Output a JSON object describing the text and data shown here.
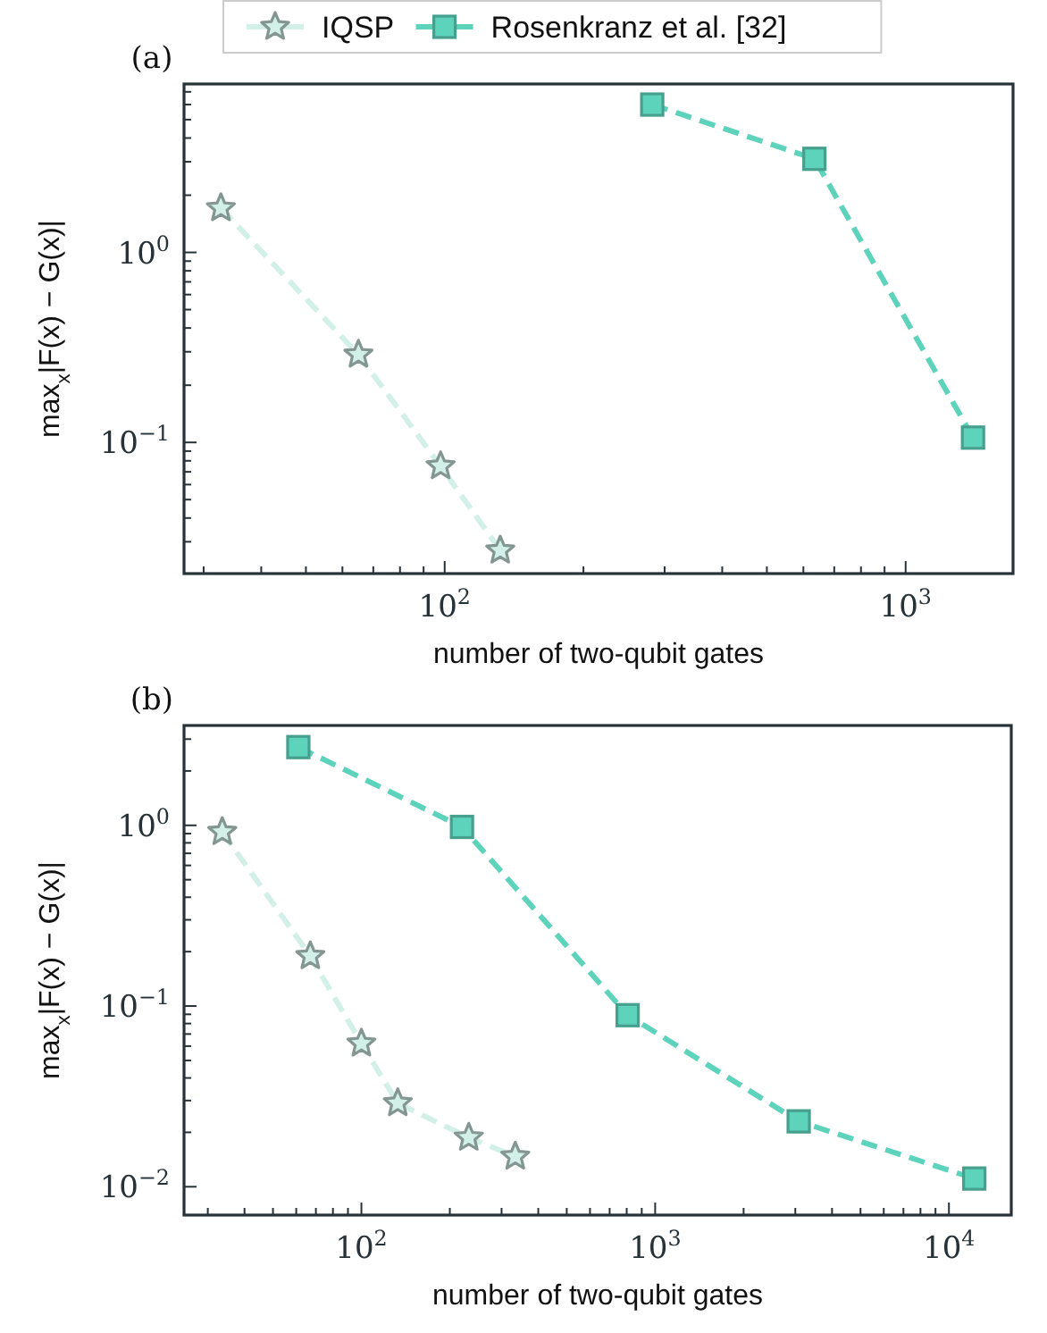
{
  "chart_data": [
    {
      "type": "line",
      "title": "(a)",
      "xlabel": "number of two-qubit gates",
      "ylabel": "max$_{x}$|F(x) − G(x)|",
      "log": "xy",
      "legend": "top",
      "line_style": "dashed",
      "grid": false,
      "xlim": [
        27.2,
        1710
      ],
      "ylim": [
        0.0204,
        7.7
      ],
      "xticks": [
        {
          "value": 30,
          "label": null
        },
        {
          "value": 40,
          "label": null
        },
        {
          "value": 50,
          "label": null
        },
        {
          "value": 60,
          "label": null
        },
        {
          "value": 70,
          "label": null
        },
        {
          "value": 80,
          "label": null
        },
        {
          "value": 90,
          "label": null
        },
        {
          "value": 100,
          "label": "10$^{2}$"
        },
        {
          "value": 200,
          "label": null
        },
        {
          "value": 300,
          "label": null
        },
        {
          "value": 400,
          "label": null
        },
        {
          "value": 500,
          "label": null
        },
        {
          "value": 600,
          "label": null
        },
        {
          "value": 700,
          "label": null
        },
        {
          "value": 800,
          "label": null
        },
        {
          "value": 900,
          "label": null
        },
        {
          "value": 1000,
          "label": "10$^{3}$"
        }
      ],
      "yticks": [
        {
          "value": 0.03,
          "label": null
        },
        {
          "value": 0.04,
          "label": null
        },
        {
          "value": 0.05,
          "label": null
        },
        {
          "value": 0.06,
          "label": null
        },
        {
          "value": 0.07,
          "label": null
        },
        {
          "value": 0.08,
          "label": null
        },
        {
          "value": 0.09,
          "label": null
        },
        {
          "value": 0.1,
          "label": "10$^{−1}$"
        },
        {
          "value": 0.2,
          "label": null
        },
        {
          "value": 0.3,
          "label": null
        },
        {
          "value": 0.4,
          "label": null
        },
        {
          "value": 0.5,
          "label": null
        },
        {
          "value": 0.6,
          "label": null
        },
        {
          "value": 0.7,
          "label": null
        },
        {
          "value": 0.8,
          "label": null
        },
        {
          "value": 0.9,
          "label": null
        },
        {
          "value": 1,
          "label": "10$^{0}$"
        },
        {
          "value": 2,
          "label": null
        },
        {
          "value": 3,
          "label": null
        },
        {
          "value": 4,
          "label": null
        },
        {
          "value": 5,
          "label": null
        },
        {
          "value": 6,
          "label": null
        },
        {
          "value": 7,
          "label": null
        }
      ],
      "series": [
        {
          "name": "IQSP",
          "color": "#d2efe8",
          "marker": "star",
          "x": [
            32.7,
            65,
            98,
            132
          ],
          "values": [
            1.71,
            0.29,
            0.075,
            0.027
          ]
        },
        {
          "name": "Rosenkranz et al. [32]",
          "color": "#5ed3bc",
          "marker": "square",
          "x": [
            282,
            634,
            1400
          ],
          "values": [
            6.0,
            3.11,
            0.106
          ]
        }
      ]
    },
    {
      "type": "line",
      "title": "(b)",
      "xlabel": "number of two-qubit gates",
      "ylabel": "max$_{x}$|F(x) − G(x)|",
      "log": "xy",
      "line_style": "dashed",
      "grid": false,
      "xlim": [
        24.9,
        16300
      ],
      "ylim": [
        0.00697,
        3.57
      ],
      "xticks": [
        {
          "value": 30,
          "label": null
        },
        {
          "value": 40,
          "label": null
        },
        {
          "value": 50,
          "label": null
        },
        {
          "value": 60,
          "label": null
        },
        {
          "value": 70,
          "label": null
        },
        {
          "value": 80,
          "label": null
        },
        {
          "value": 90,
          "label": null
        },
        {
          "value": 100,
          "label": "10$^{2}$"
        },
        {
          "value": 200,
          "label": null
        },
        {
          "value": 300,
          "label": null
        },
        {
          "value": 400,
          "label": null
        },
        {
          "value": 500,
          "label": null
        },
        {
          "value": 600,
          "label": null
        },
        {
          "value": 700,
          "label": null
        },
        {
          "value": 800,
          "label": null
        },
        {
          "value": 900,
          "label": null
        },
        {
          "value": 1000,
          "label": "10$^{3}$"
        },
        {
          "value": 2000,
          "label": null
        },
        {
          "value": 3000,
          "label": null
        },
        {
          "value": 4000,
          "label": null
        },
        {
          "value": 5000,
          "label": null
        },
        {
          "value": 6000,
          "label": null
        },
        {
          "value": 7000,
          "label": null
        },
        {
          "value": 8000,
          "label": null
        },
        {
          "value": 9000,
          "label": null
        },
        {
          "value": 10000,
          "label": "10$^{4}$"
        }
      ],
      "yticks": [
        {
          "value": 0.01,
          "label": "10$^{−2}$"
        },
        {
          "value": 0.02,
          "label": null
        },
        {
          "value": 0.03,
          "label": null
        },
        {
          "value": 0.04,
          "label": null
        },
        {
          "value": 0.05,
          "label": null
        },
        {
          "value": 0.06,
          "label": null
        },
        {
          "value": 0.07,
          "label": null
        },
        {
          "value": 0.08,
          "label": null
        },
        {
          "value": 0.09,
          "label": null
        },
        {
          "value": 0.1,
          "label": "10$^{−1}$"
        },
        {
          "value": 0.2,
          "label": null
        },
        {
          "value": 0.3,
          "label": null
        },
        {
          "value": 0.4,
          "label": null
        },
        {
          "value": 0.5,
          "label": null
        },
        {
          "value": 0.6,
          "label": null
        },
        {
          "value": 0.7,
          "label": null
        },
        {
          "value": 0.8,
          "label": null
        },
        {
          "value": 0.9,
          "label": null
        },
        {
          "value": 1,
          "label": "10$^{0}$"
        },
        {
          "value": 2,
          "label": null
        },
        {
          "value": 3,
          "label": null
        }
      ],
      "series": [
        {
          "color": "#d2efe8",
          "marker": "star",
          "x": [
            33.6,
            67,
            100,
            133,
            232,
            334
          ],
          "values": [
            0.92,
            0.189,
            0.062,
            0.029,
            0.0187,
            0.0147
          ]
        },
        {
          "color": "#5ed3bc",
          "marker": "square",
          "x": [
            61,
            220,
            806,
            3080,
            12200
          ],
          "values": [
            2.71,
            0.98,
            0.089,
            0.023,
            0.0111
          ]
        }
      ]
    }
  ]
}
